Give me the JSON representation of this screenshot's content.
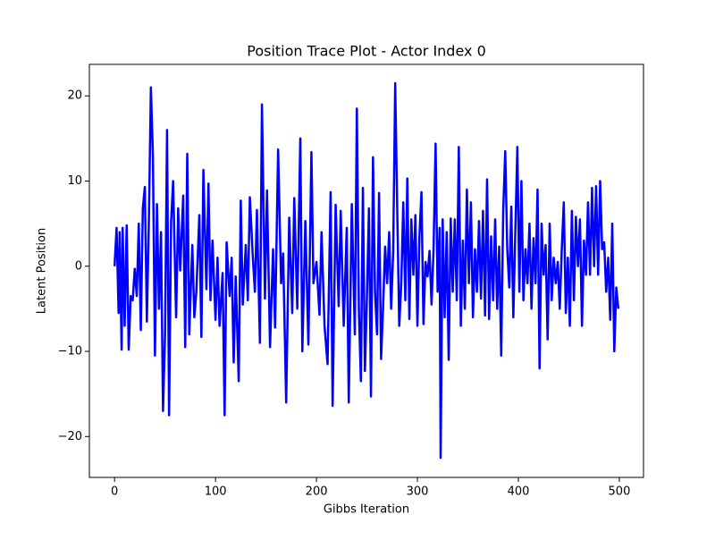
{
  "chart_data": {
    "type": "line",
    "title": "Position Trace Plot - Actor Index 0",
    "x_label": "Gibbs Iteration",
    "y_label": "Latent Position",
    "color": "#0000ff",
    "x": [
      0,
      2,
      4,
      5,
      7,
      8,
      10,
      12,
      14,
      16,
      18,
      20,
      22,
      24,
      26,
      28,
      30,
      32,
      34,
      36,
      38,
      40,
      42,
      44,
      46,
      48,
      50,
      52,
      54,
      56,
      58,
      61,
      63,
      65,
      68,
      70,
      72,
      74,
      77,
      79,
      81,
      84,
      86,
      88,
      91,
      93,
      95,
      97,
      100,
      102,
      104,
      107,
      109,
      111,
      114,
      116,
      118,
      120,
      123,
      125,
      127,
      130,
      132,
      134,
      137,
      139,
      141,
      144,
      146,
      149,
      151,
      154,
      157,
      159,
      162,
      165,
      167,
      170,
      173,
      176,
      178,
      181,
      184,
      186,
      189,
      192,
      195,
      197,
      200,
      203,
      205,
      208,
      211,
      214,
      216,
      219,
      222,
      224,
      227,
      230,
      232,
      235,
      238,
      240,
      242,
      244,
      246,
      248,
      250,
      252,
      254,
      256,
      258,
      260,
      262,
      264,
      266,
      268,
      270,
      272,
      274,
      276,
      278,
      280,
      282,
      284,
      286,
      288,
      290,
      292,
      294,
      296,
      298,
      300,
      302,
      304,
      306,
      308,
      310,
      312,
      314,
      316,
      318,
      320,
      322,
      323,
      325,
      327,
      329,
      331,
      333,
      335,
      337,
      339,
      341,
      343,
      345,
      347,
      349,
      351,
      353,
      355,
      357,
      359,
      361,
      363,
      365,
      367,
      369,
      371,
      373,
      375,
      377,
      379,
      381,
      383,
      385,
      387,
      389,
      391,
      393,
      395,
      397,
      399,
      401,
      403,
      405,
      407,
      409,
      411,
      413,
      415,
      417,
      419,
      421,
      423,
      425,
      427,
      429,
      431,
      433,
      435,
      437,
      439,
      441,
      443,
      445,
      447,
      449,
      451,
      453,
      455,
      457,
      459,
      461,
      463,
      465,
      467,
      469,
      471,
      473,
      475,
      477,
      479,
      481,
      483,
      485,
      487,
      489,
      491,
      493,
      495,
      497,
      499
    ],
    "values": [
      0,
      4.5,
      -5.5,
      4,
      -9.8,
      4.5,
      -7,
      4.8,
      -9.8,
      -3.5,
      -4,
      -0.3,
      -3.5,
      5,
      -7.5,
      6.8,
      9.3,
      -6.5,
      5.5,
      21,
      13,
      -10.5,
      7.3,
      -5,
      4,
      -17,
      -8,
      16,
      -17.5,
      5.2,
      10,
      -6,
      6.8,
      -0.5,
      8.3,
      -9.5,
      13.2,
      -8,
      2.5,
      -6,
      -3,
      6,
      -8.3,
      11.3,
      -2.7,
      9.7,
      -4,
      3,
      -6.3,
      1,
      -7,
      -0.8,
      -17.5,
      2.8,
      -3.5,
      1,
      -11.3,
      -1.2,
      -13.5,
      7.7,
      -4.5,
      2.5,
      -4,
      8.1,
      1,
      -3,
      6.6,
      -9,
      19,
      -3.8,
      8.9,
      -9.5,
      2,
      -7.2,
      13.7,
      -2,
      1.5,
      -16,
      5.7,
      -5.5,
      8,
      -5,
      15,
      -10,
      5.3,
      -9.2,
      13.4,
      -2,
      0.5,
      -5.7,
      4,
      -7,
      -11.5,
      8.7,
      -16.4,
      7.2,
      -4.7,
      6.5,
      -7,
      4.5,
      -16,
      7.3,
      -8,
      18.5,
      -5,
      -13.5,
      9.2,
      -12.3,
      -3.5,
      6.8,
      -15.3,
      12.8,
      -3,
      -8,
      8.6,
      -10.9,
      -4.8,
      2.3,
      -2,
      4,
      -5,
      1.7,
      21.5,
      6.7,
      -7,
      -2,
      7.5,
      -4,
      10.3,
      -6.2,
      5.5,
      -1,
      6,
      -7,
      3.5,
      8.7,
      -6.8,
      0.5,
      -1.2,
      1.8,
      -4.5,
      2,
      14.4,
      -3,
      4.5,
      -22.5,
      5.5,
      -6,
      4,
      -11,
      5.6,
      -3,
      5.5,
      -4,
      14,
      -7,
      3,
      -5,
      9,
      -2,
      7.5,
      -6,
      2,
      -3,
      5.3,
      -3.8,
      6.5,
      -5.8,
      10.2,
      -6.2,
      3.5,
      -4,
      5.5,
      -5,
      2.3,
      -10.5,
      6.6,
      13.5,
      2,
      -2.5,
      7,
      -6,
      4.2,
      14,
      -3,
      10,
      -4,
      2,
      -2,
      5,
      -5,
      3.3,
      -2,
      9,
      -12,
      5,
      -1,
      2.5,
      -8.6,
      5,
      -4,
      1,
      -2,
      0.5,
      -5,
      2,
      7.5,
      -5.5,
      1,
      -7,
      6.5,
      -4,
      5.8,
      0,
      5.5,
      -7,
      3,
      -1,
      7.5,
      -1,
      9.2,
      0,
      9.4,
      -1,
      10,
      2,
      2.8,
      -3,
      1,
      -6.3,
      5,
      -10,
      -2.5,
      -5
    ],
    "xlim": [
      -24.95,
      523.95
    ],
    "ylim": [
      -24.8,
      23.7
    ],
    "xticks": [
      0,
      100,
      200,
      300,
      400,
      500
    ],
    "yticks": [
      {
        "value": -20,
        "label": "−20"
      },
      {
        "value": -10,
        "label": "−10"
      },
      0,
      10,
      20
    ]
  }
}
